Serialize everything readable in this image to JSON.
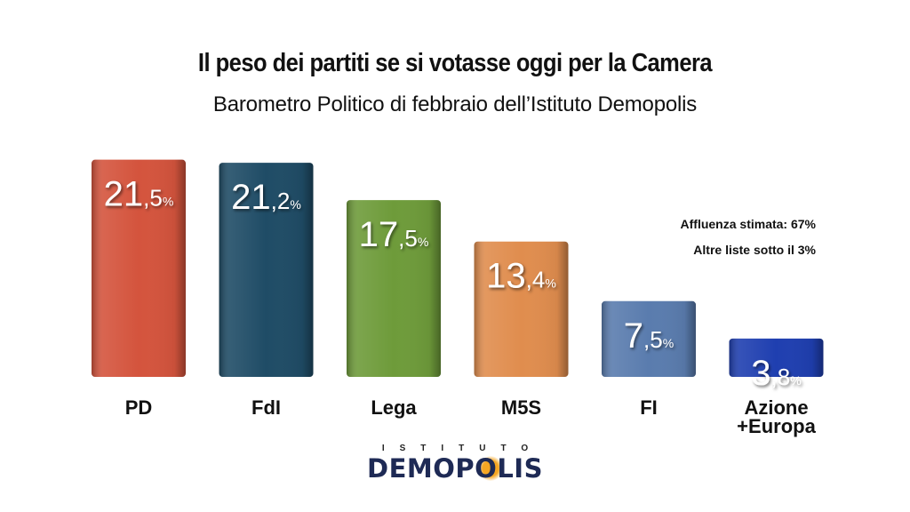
{
  "title": "Il peso dei partiti se si votasse oggi per la Camera",
  "subtitle": "Barometro Politico di febbraio dell’Istituto Demopolis",
  "notes": [
    "Affluenza stimata: 67%",
    "Altre liste sotto il 3%"
  ],
  "brand": {
    "top": "ISTITUTO",
    "main": "DEMOPOLIS"
  },
  "colors": {
    "PD": "#d4543d",
    "FdI": "#1f4c66",
    "Lega": "#6e9b3a",
    "M5S": "#e08d4e",
    "FI": "#5a7cae",
    "Azione": "#1f3fb0"
  },
  "chart_data": {
    "type": "bar",
    "categories": [
      "PD",
      "FdI",
      "Lega",
      "M5S",
      "FI",
      "Azione +Europa"
    ],
    "category_lines": [
      [
        "PD"
      ],
      [
        "FdI"
      ],
      [
        "Lega"
      ],
      [
        "M5S"
      ],
      [
        "FI"
      ],
      [
        "Azione",
        "+Europa"
      ]
    ],
    "values": [
      21.5,
      21.2,
      17.5,
      13.4,
      7.5,
      3.8
    ],
    "value_labels": [
      {
        "int": "21",
        "dec": ",5",
        "unit": "%"
      },
      {
        "int": "21",
        "dec": ",2",
        "unit": "%"
      },
      {
        "int": "17",
        "dec": ",5",
        "unit": "%"
      },
      {
        "int": "13",
        "dec": ",4",
        "unit": "%"
      },
      {
        "int": "7",
        "dec": ",5",
        "unit": "%"
      },
      {
        "int": "3",
        "dec": ",8",
        "unit": "%"
      }
    ],
    "bar_colors": [
      "#d4543d",
      "#1f4c66",
      "#6e9b3a",
      "#e08d4e",
      "#5a7cae",
      "#1f3fb0"
    ],
    "ylim": [
      0,
      22
    ],
    "grid": false,
    "legend": "none"
  }
}
